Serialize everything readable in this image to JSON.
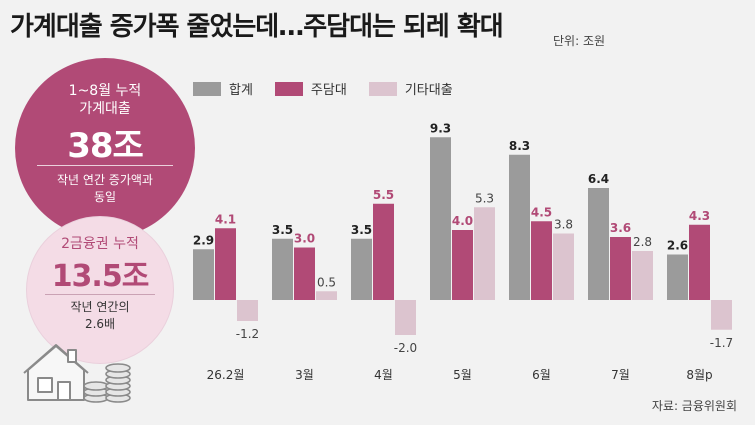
{
  "header": {
    "title": "가계대출 증가폭 줄었는데…주담대는 되레 확대",
    "unit": "단위: 조원"
  },
  "summary": [
    {
      "label": "1~8월 누적\n가계대출",
      "value": "38조",
      "note": "작년 연간 증가액과\n동일"
    },
    {
      "label": "2금융권 누적",
      "value": "13.5조",
      "note": "작년 연간의\n2.6배"
    }
  ],
  "source": "자료: 금융위원회",
  "colors": {
    "total": "#9b9b9b",
    "mortgage": "#b14a76",
    "other": "#dcc4cf",
    "accent": "#b14a76"
  },
  "chart_data": {
    "type": "bar",
    "categories": [
      "26.2월",
      "3월",
      "4월",
      "5월",
      "6월",
      "7월",
      "8월p"
    ],
    "series": [
      {
        "name": "합계",
        "values": [
          2.9,
          3.5,
          3.5,
          9.3,
          8.3,
          6.4,
          2.6
        ],
        "labels": [
          "2.9",
          "3.5",
          "3.5",
          "9.3",
          "8.3",
          "6.4",
          "2.6"
        ]
      },
      {
        "name": "주담대",
        "values": [
          4.1,
          3.0,
          5.5,
          4.0,
          4.5,
          3.6,
          4.3
        ],
        "labels": [
          "4.1",
          "3.0",
          "5.5",
          "4.0",
          "4.5",
          "3.6",
          "4.3"
        ]
      },
      {
        "name": "기타대출",
        "values": [
          -1.2,
          0.5,
          -2.0,
          5.3,
          3.8,
          2.8,
          -1.7
        ],
        "labels": [
          "-1.2",
          "0.5",
          "-2.0",
          "5.3",
          "3.8",
          "2.8",
          "-1.7"
        ]
      }
    ],
    "ylim": [
      -2.5,
      10
    ],
    "unit": "조원",
    "legend": "top-left",
    "grid": false
  }
}
